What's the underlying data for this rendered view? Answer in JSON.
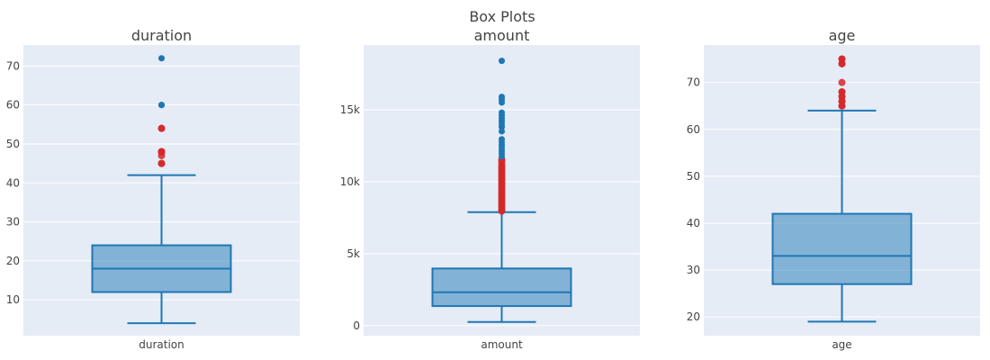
{
  "title": "Box Plots",
  "colors": {
    "plot_bg": "#e5ecf6",
    "grid": "#ffffff",
    "box_line": "#1f77b4",
    "box_fill": "#1f77b4",
    "outlier_near": "#d62728",
    "outlier_far": "#1f77b4"
  },
  "chart_data": [
    {
      "type": "box",
      "title": "duration",
      "category": "duration",
      "ylim": [
        0.8,
        75.4
      ],
      "yticks": [
        10,
        20,
        30,
        40,
        50,
        60,
        70
      ],
      "ytick_labels": [
        "10",
        "20",
        "30",
        "40",
        "50",
        "60",
        "70"
      ],
      "grid": true,
      "stats": {
        "lower_fence": 4,
        "q1": 12,
        "median": 18,
        "q3": 24,
        "upper_fence": 42
      },
      "outliers_near": [
        45,
        45,
        47,
        48,
        48,
        48,
        54,
        54
      ],
      "outliers_far": [
        60,
        60,
        60,
        72
      ]
    },
    {
      "type": "box",
      "title": "amount",
      "category": "amount",
      "ylim": [
        -700,
        19500
      ],
      "yticks": [
        0,
        5000,
        10000,
        15000
      ],
      "ytick_labels": [
        "0",
        "5k",
        "10k",
        "15k"
      ],
      "grid": true,
      "stats": {
        "lower_fence": 250,
        "q1": 1360,
        "median": 2320,
        "q3": 3970,
        "upper_fence": 7880
      },
      "outliers_near": [
        7950,
        8050,
        8200,
        8350,
        8500,
        8650,
        8800,
        8950,
        9100,
        9250,
        9400,
        9550,
        9700,
        9850,
        10000,
        10150,
        10300,
        10450,
        10600,
        10750,
        10900,
        11050,
        11200,
        11400,
        11550
      ],
      "outliers_far": [
        11750,
        11950,
        12150,
        12350,
        12550,
        12750,
        12950,
        13500,
        13800,
        14000,
        14200,
        14400,
        14600,
        14800,
        15500,
        15700,
        15900,
        18400
      ]
    },
    {
      "type": "box",
      "title": "age",
      "category": "age",
      "ylim": [
        16.0,
        78.0
      ],
      "yticks": [
        20,
        30,
        40,
        50,
        60,
        70
      ],
      "ytick_labels": [
        "20",
        "30",
        "40",
        "50",
        "60",
        "70"
      ],
      "grid": true,
      "stats": {
        "lower_fence": 19,
        "q1": 27,
        "median": 33,
        "q3": 42,
        "upper_fence": 64
      },
      "outliers_near": [
        65,
        65,
        66,
        66,
        67,
        67,
        68,
        68,
        70,
        74,
        74,
        75,
        75
      ],
      "outliers_far": []
    }
  ]
}
